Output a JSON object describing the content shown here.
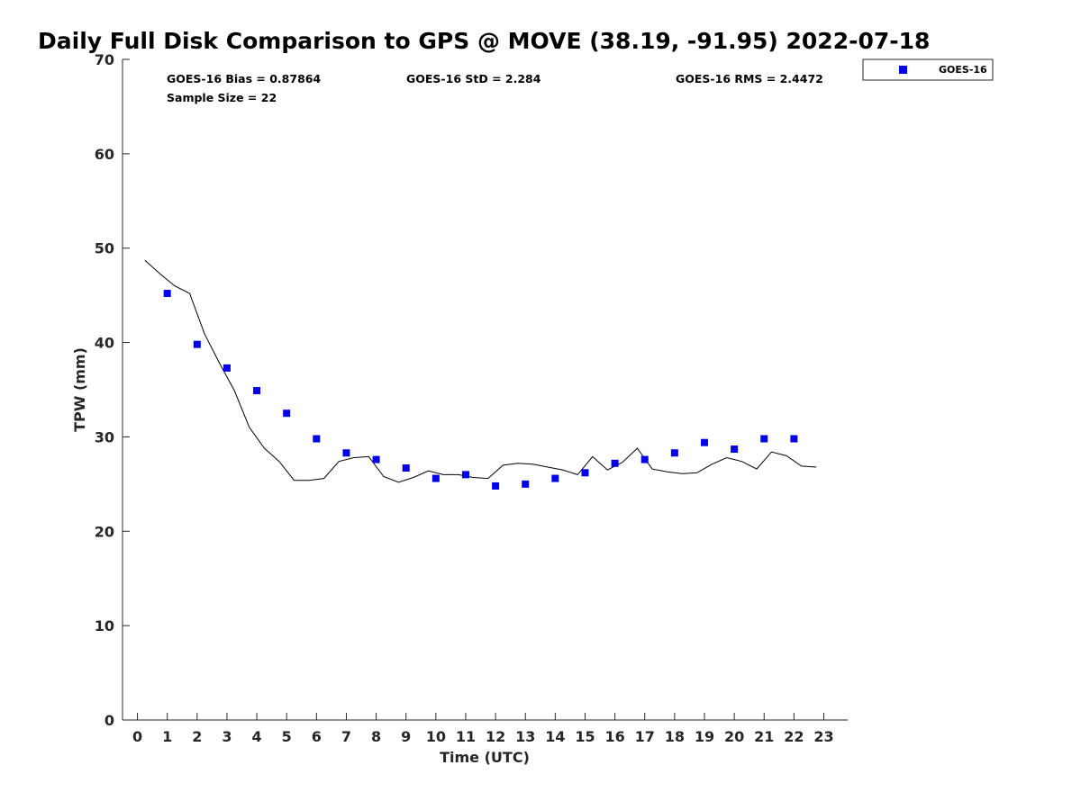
{
  "chart_data": {
    "type": "scatter",
    "title": "Daily Full Disk Comparison to GPS @ MOVE (38.19, -91.95) 2022-07-18",
    "xlabel": "Time (UTC)",
    "ylabel": "TPW (mm)",
    "xlim": [
      -0.5,
      23.8
    ],
    "ylim": [
      0,
      70
    ],
    "x_ticks": [
      0,
      1,
      2,
      3,
      4,
      5,
      6,
      7,
      8,
      9,
      10,
      11,
      12,
      13,
      14,
      15,
      16,
      17,
      18,
      19,
      20,
      21,
      22,
      23
    ],
    "y_ticks": [
      0,
      10,
      20,
      30,
      40,
      50,
      60,
      70
    ],
    "grid": false,
    "legend_position": "outside-top-right",
    "stats": {
      "bias": "GOES-16 Bias = 0.87864",
      "std": "GOES-16 StD = 2.284",
      "rms": "GOES-16 RMS = 2.4472",
      "sample": "Sample Size = 22"
    },
    "series": [
      {
        "name": "GOES-16",
        "kind": "marker",
        "color": "#0000e6",
        "x": [
          1,
          2,
          3,
          4,
          5,
          6,
          7,
          8,
          9,
          10,
          11,
          12,
          13,
          14,
          15,
          16,
          17,
          18,
          19,
          20,
          21,
          22
        ],
        "y": [
          45.2,
          39.8,
          37.3,
          34.9,
          32.5,
          29.8,
          28.3,
          27.6,
          26.7,
          25.6,
          26.0,
          24.8,
          25.0,
          25.6,
          26.2,
          27.2,
          27.6,
          28.3,
          29.4,
          28.7,
          29.8,
          29.8
        ]
      },
      {
        "kind": "line",
        "color": "#000000",
        "x": [
          0.25,
          0.75,
          1.25,
          1.75,
          2.25,
          2.75,
          3.25,
          3.75,
          4.25,
          4.75,
          5.25,
          5.75,
          6.25,
          6.75,
          7.25,
          7.75,
          8.25,
          8.75,
          9.25,
          9.75,
          10.25,
          10.75,
          11.25,
          11.75,
          12.25,
          12.75,
          13.25,
          13.75,
          14.25,
          14.75,
          15.25,
          15.75,
          16.25,
          16.75,
          17.25,
          17.75,
          18.25,
          18.75,
          19.25,
          19.75,
          20.25,
          20.75,
          21.25,
          21.75,
          22.25,
          22.75
        ],
        "y": [
          48.7,
          47.3,
          46.0,
          45.2,
          40.9,
          37.8,
          34.9,
          31.0,
          28.8,
          27.4,
          25.4,
          25.4,
          25.6,
          27.4,
          27.8,
          27.9,
          25.8,
          25.2,
          25.7,
          26.4,
          26.0,
          26.0,
          25.7,
          25.6,
          27.0,
          27.2,
          27.1,
          26.8,
          26.5,
          26.0,
          27.9,
          26.5,
          27.3,
          28.8,
          26.6,
          26.3,
          26.1,
          26.2,
          27.1,
          27.8,
          27.4,
          26.6,
          28.4,
          28.0,
          26.9,
          26.8
        ]
      }
    ]
  }
}
